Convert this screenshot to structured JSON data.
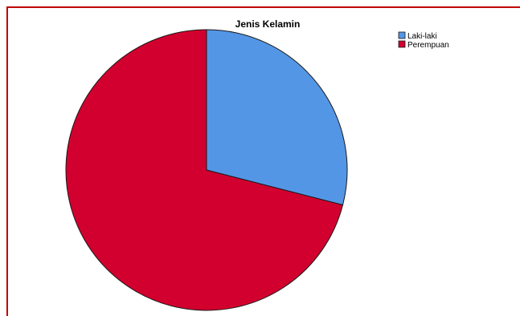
{
  "chart_data": {
    "type": "pie",
    "title": "Jenis Kelamin",
    "categories": [
      "Laki-laki",
      "Perempuan"
    ],
    "values": [
      29,
      71
    ],
    "colors": [
      "#5496e6",
      "#d2002e"
    ],
    "legend": "top-right",
    "start_angle": "12 o'clock",
    "direction": "clockwise"
  }
}
